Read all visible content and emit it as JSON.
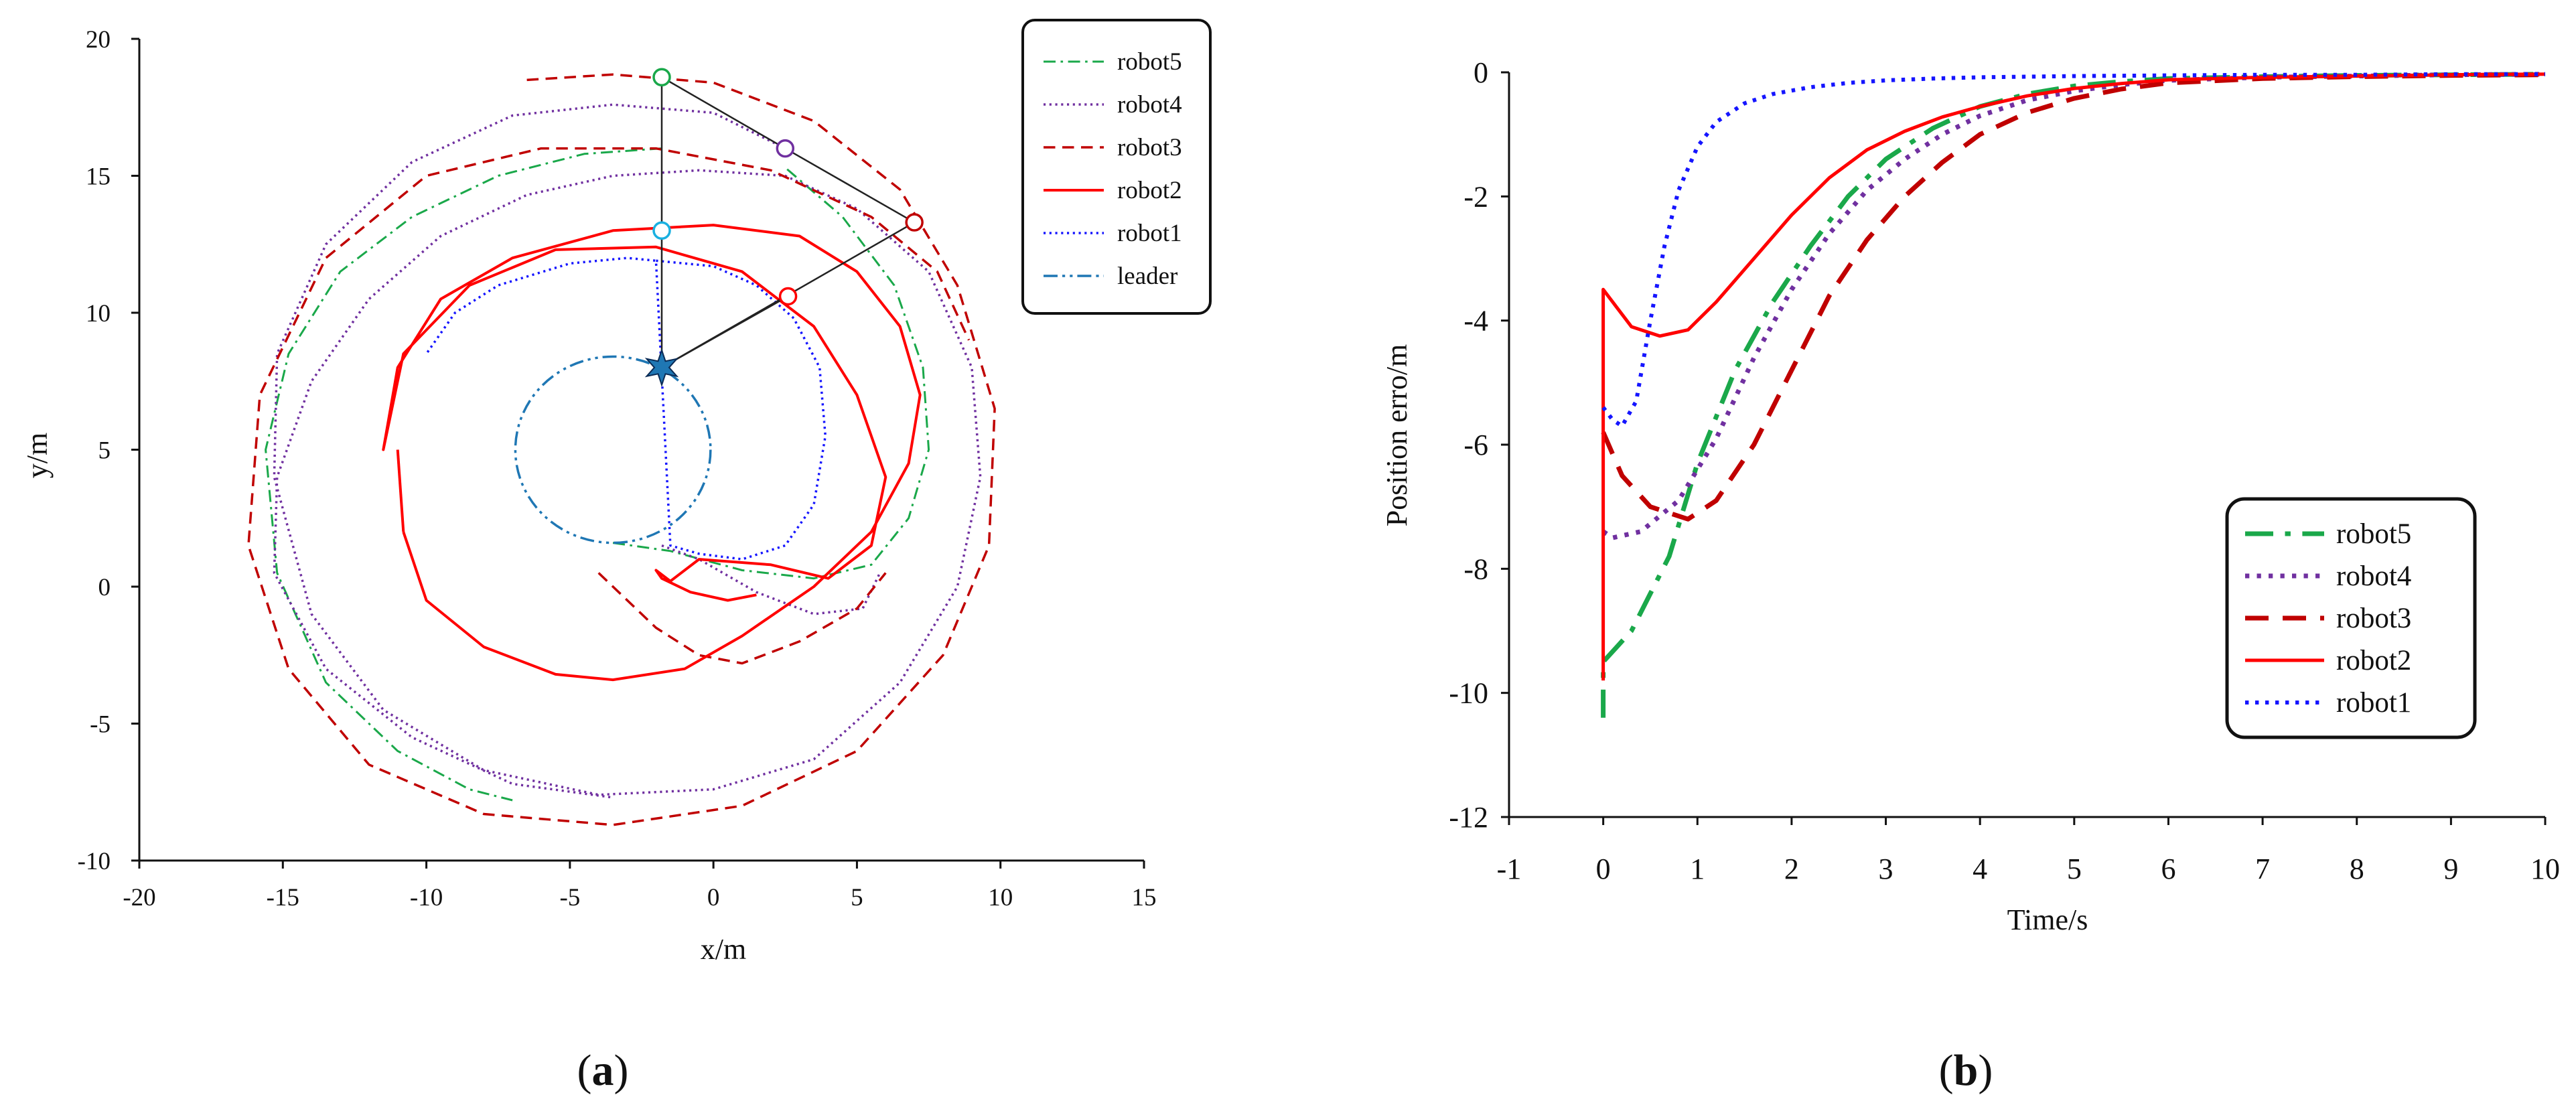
{
  "chart_data": [
    {
      "type": "line",
      "panel_label": "a",
      "title": "",
      "xlabel": "x/m",
      "ylabel": "y/m",
      "xlim": [
        -20,
        15
      ],
      "ylim": [
        -10,
        20
      ],
      "xticks": [
        -20,
        -15,
        -10,
        -5,
        0,
        5,
        10,
        15
      ],
      "yticks": [
        -10,
        -5,
        0,
        5,
        10,
        15,
        20
      ],
      "grid": false,
      "legend_position": "top-right",
      "series": [
        {
          "name": "robot5",
          "color": "#1aa84a",
          "dash": "dashdot",
          "width": 3,
          "x": [
            -1.8,
            -4.5,
            -7.5,
            -10.5,
            -13,
            -14.8,
            -15.6,
            -15.2,
            -13.5,
            -11,
            -8.5,
            -7
          ],
          "y": [
            16.0,
            15.8,
            15.0,
            13.5,
            11.5,
            8.5,
            5.0,
            0.5,
            -3.5,
            -6.0,
            -7.4,
            -7.8
          ]
        },
        {
          "name": "robot5_inner",
          "legend": false,
          "color": "#1aa84a",
          "dash": "dashdot",
          "width": 3,
          "x": [
            -3.5,
            -1.5,
            1.0,
            3.5,
            5.5,
            6.8,
            7.5,
            7.3,
            6.3,
            4.5,
            2.5
          ],
          "y": [
            1.6,
            1.3,
            0.6,
            0.3,
            0.8,
            2.5,
            5.0,
            8.0,
            11.0,
            13.5,
            15.3
          ]
        },
        {
          "name": "robot4",
          "color": "#7030a0",
          "dash": "dotted",
          "width": 3.5,
          "x": [
            2.5,
            0,
            -3.5,
            -7,
            -10.5,
            -13.5,
            -15.2,
            -15.3,
            -14,
            -11.5,
            -8,
            -4,
            0,
            3.5,
            6.5,
            8.5,
            9.3,
            9.0,
            7.5,
            5.0,
            2.5,
            -0.5,
            -3.5,
            -6.5,
            -9.5,
            -12.0,
            -14.0,
            -15.2,
            -15.3,
            -13.5,
            -10.5,
            -7.0,
            -3.5
          ],
          "y": [
            16.0,
            17.3,
            17.6,
            17.2,
            15.5,
            12.5,
            8.5,
            4.0,
            -1.0,
            -4.5,
            -6.7,
            -7.6,
            -7.4,
            -6.3,
            -3.5,
            0.0,
            4.0,
            8.0,
            11.5,
            13.8,
            15.0,
            15.2,
            15.0,
            14.3,
            12.8,
            10.5,
            7.5,
            4.0,
            0.5,
            -3.0,
            -5.5,
            -7.2,
            -7.7
          ]
        },
        {
          "name": "robot4_inner",
          "legend": false,
          "color": "#7030a0",
          "dash": "dotted",
          "width": 3.5,
          "x": [
            -1.8,
            -0.5,
            1.5,
            3.5,
            5.2,
            5.8
          ],
          "y": [
            1.5,
            1.0,
            -0.2,
            -1.0,
            -0.8,
            0.5
          ]
        },
        {
          "name": "robot3",
          "color": "#c00000",
          "dash": "dashed",
          "width": 3.5,
          "x": [
            -6.5,
            -3.5,
            0,
            3.5,
            6.5,
            8.5,
            9.8,
            9.6,
            8.0,
            5.0,
            1.0,
            -3.5,
            -8.0,
            -12.0,
            -14.8,
            -16.2,
            -15.8,
            -13.5,
            -10.0,
            -6.0,
            -2.0,
            2.0,
            5.5,
            7.8,
            8.9
          ],
          "y": [
            18.5,
            18.7,
            18.4,
            17.0,
            14.5,
            11.0,
            6.5,
            1.5,
            -2.5,
            -6.0,
            -8.0,
            -8.7,
            -8.3,
            -6.5,
            -3.0,
            1.5,
            7.0,
            12.0,
            15.0,
            16.0,
            16.0,
            15.2,
            13.5,
            11.5,
            9.0
          ]
        },
        {
          "name": "robot3_inner",
          "legend": false,
          "color": "#c00000",
          "dash": "dashed",
          "width": 3.5,
          "x": [
            -4.0,
            -3.0,
            -2.0,
            -0.5,
            1.0,
            3.0,
            5.0,
            6.0
          ],
          "y": [
            0.5,
            -0.5,
            -1.5,
            -2.5,
            -2.8,
            -2.0,
            -0.8,
            0.5
          ]
        },
        {
          "name": "robot2",
          "color": "#ff0000",
          "dash": "solid",
          "width": 4,
          "x": [
            -10.8,
            -10.0,
            -8.0,
            -5.5,
            -3.5,
            -1.0,
            1.0,
            3.5,
            5.5,
            6.8,
            7.2,
            6.5,
            5.0,
            3.0,
            0.0,
            -3.5,
            -7.0,
            -9.5,
            -11.0,
            -11.5,
            -10.8,
            -8.5,
            -5.5,
            -2.0,
            1.0,
            3.5,
            5.0,
            6.0,
            5.5,
            4.0,
            2.0,
            -0.5,
            -1.5,
            -2.0,
            -1.8,
            -0.8,
            0.5,
            1.5
          ],
          "y": [
            2.0,
            -0.5,
            -2.2,
            -3.2,
            -3.4,
            -3.0,
            -1.8,
            0.0,
            2.0,
            4.5,
            7.0,
            9.5,
            11.5,
            12.8,
            13.2,
            13.0,
            12.0,
            10.5,
            8.0,
            5.0,
            8.5,
            11.0,
            12.3,
            12.4,
            11.5,
            9.5,
            7.0,
            4.0,
            1.5,
            0.3,
            0.8,
            1.0,
            0.2,
            0.6,
            0.3,
            -0.2,
            -0.5,
            -0.3
          ]
        },
        {
          "name": "robot2_stem",
          "legend": false,
          "color": "#ff0000",
          "dash": "solid",
          "width": 4,
          "x": [
            -11.0,
            -10.8
          ],
          "y": [
            5.0,
            2.0
          ]
        },
        {
          "name": "robot1",
          "color": "#1515ff",
          "dash": "dotted",
          "width": 3.5,
          "x": [
            -2.0,
            0.0,
            1.5,
            2.8,
            3.7,
            3.9,
            3.5,
            2.5,
            1.0,
            -0.5,
            -1.5,
            -2.0,
            -3.0,
            -5.0,
            -7.5,
            -9.0,
            -10.0
          ],
          "y": [
            11.9,
            11.7,
            11.0,
            9.8,
            8.0,
            5.5,
            3.0,
            1.5,
            1.0,
            1.2,
            1.5,
            11.9,
            12.0,
            11.8,
            11.0,
            10.0,
            8.5
          ]
        },
        {
          "name": "leader",
          "color": "#1f77b4",
          "dash": "dashdotdot",
          "width": 3.5,
          "circle": {
            "cx": -3.5,
            "cy": 5.0,
            "r": 3.4
          }
        }
      ],
      "formation_links": [
        {
          "from": [
            -1.8,
            18.6
          ],
          "to": [
            2.5,
            16.0
          ]
        },
        {
          "from": [
            2.5,
            16.0
          ],
          "to": [
            7.0,
            13.3
          ]
        },
        {
          "from": [
            7.0,
            13.3
          ],
          "to": [
            -1.8,
            8.0
          ]
        },
        {
          "from": [
            -1.8,
            18.6
          ],
          "to": [
            -1.8,
            8.0
          ]
        },
        {
          "from": [
            2.6,
            10.6
          ],
          "to": [
            -1.8,
            8.0
          ]
        }
      ],
      "markers": [
        {
          "robot": "robot5",
          "x": -1.8,
          "y": 18.6,
          "color": "#1aa84a",
          "shape": "circle"
        },
        {
          "robot": "robot4",
          "x": 2.5,
          "y": 16.0,
          "color": "#7030a0",
          "shape": "circle"
        },
        {
          "robot": "robot3",
          "x": 7.0,
          "y": 13.3,
          "color": "#c00000",
          "shape": "circle"
        },
        {
          "robot": "robot2",
          "x": 2.6,
          "y": 10.6,
          "color": "#ff0000",
          "shape": "circle"
        },
        {
          "robot": "robot1",
          "x": -1.8,
          "y": 13.0,
          "color": "#1ab0e0",
          "shape": "circle"
        },
        {
          "robot": "leader",
          "x": -1.8,
          "y": 8.0,
          "color": "#1f77b4",
          "shape": "star"
        }
      ]
    },
    {
      "type": "line",
      "panel_label": "b",
      "title": "",
      "xlabel": "Time/s",
      "ylabel": "Position erro/m",
      "xlim": [
        -1,
        10
      ],
      "ylim": [
        -12,
        0
      ],
      "xticks": [
        -1,
        0,
        1,
        2,
        3,
        4,
        5,
        6,
        7,
        8,
        9,
        10
      ],
      "yticks": [
        -12,
        -10,
        -8,
        -6,
        -4,
        -2,
        0
      ],
      "grid": false,
      "legend_position": "bottom-right",
      "series": [
        {
          "name": "robot5",
          "color": "#1aa84a",
          "dash": "dashdot",
          "width": 7,
          "x": [
            0,
            0,
            0.3,
            0.7,
            1.0,
            1.4,
            1.8,
            2.2,
            2.6,
            3.0,
            3.5,
            4.0,
            4.5,
            5.0,
            5.5,
            6.0,
            7.0,
            8.0,
            9.0,
            10.0
          ],
          "y": [
            -10.4,
            -9.5,
            -9.0,
            -7.8,
            -6.3,
            -4.8,
            -3.7,
            -2.8,
            -2.0,
            -1.4,
            -0.9,
            -0.55,
            -0.35,
            -0.22,
            -0.15,
            -0.1,
            -0.07,
            -0.05,
            -0.04,
            -0.03
          ]
        },
        {
          "name": "robot4",
          "color": "#7030a0",
          "dash": "dotted",
          "width": 7,
          "x": [
            0,
            0.1,
            0.4,
            0.8,
            1.2,
            1.6,
            2.0,
            2.4,
            2.8,
            3.2,
            3.6,
            4.0,
            4.5,
            5.0,
            5.5,
            6.0,
            7.0,
            8.0,
            9.0,
            10.0
          ],
          "y": [
            -7.4,
            -7.5,
            -7.4,
            -6.9,
            -5.9,
            -4.6,
            -3.5,
            -2.6,
            -1.9,
            -1.4,
            -1.0,
            -0.7,
            -0.45,
            -0.3,
            -0.2,
            -0.13,
            -0.08,
            -0.06,
            -0.04,
            -0.03
          ]
        },
        {
          "name": "robot3",
          "color": "#c00000",
          "dash": "dashed",
          "width": 7,
          "x": [
            0,
            0.2,
            0.5,
            0.9,
            1.2,
            1.6,
            2.0,
            2.4,
            2.8,
            3.2,
            3.6,
            4.0,
            4.5,
            5.0,
            5.5,
            6.0,
            7.0,
            8.0,
            9.0,
            10.0
          ],
          "y": [
            -5.8,
            -6.5,
            -7.0,
            -7.2,
            -6.9,
            -6.0,
            -4.8,
            -3.6,
            -2.7,
            -2.0,
            -1.45,
            -1.0,
            -0.65,
            -0.42,
            -0.27,
            -0.17,
            -0.1,
            -0.07,
            -0.05,
            -0.04
          ]
        },
        {
          "name": "robot2",
          "color": "#ff0000",
          "dash": "solid",
          "width": 5,
          "x": [
            0,
            0,
            0.1,
            0.3,
            0.6,
            0.9,
            1.2,
            1.6,
            2.0,
            2.4,
            2.8,
            3.2,
            3.6,
            4.0,
            4.5,
            5.0,
            5.5,
            6.0,
            7.0,
            8.0,
            9.0,
            10.0
          ],
          "y": [
            -9.8,
            -3.5,
            -3.7,
            -4.1,
            -4.25,
            -4.15,
            -3.7,
            -3.0,
            -2.3,
            -1.7,
            -1.25,
            -0.95,
            -0.72,
            -0.55,
            -0.38,
            -0.26,
            -0.18,
            -0.12,
            -0.08,
            -0.06,
            -0.04,
            -0.03
          ]
        },
        {
          "name": "robot1",
          "color": "#1515ff",
          "dash": "dotted",
          "width": 6,
          "x": [
            0,
            0.1,
            0.2,
            0.35,
            0.5,
            0.65,
            0.8,
            1.0,
            1.2,
            1.5,
            1.8,
            2.2,
            2.6,
            3.0,
            3.5,
            4.0,
            4.5,
            5.0,
            6.0,
            7.0,
            8.0,
            9.0,
            10.0
          ],
          "y": [
            -5.4,
            -5.6,
            -5.7,
            -5.3,
            -4.0,
            -2.8,
            -1.9,
            -1.2,
            -0.8,
            -0.5,
            -0.35,
            -0.24,
            -0.17,
            -0.13,
            -0.1,
            -0.08,
            -0.07,
            -0.06,
            -0.05,
            -0.04,
            -0.04,
            -0.03,
            -0.03
          ]
        }
      ]
    }
  ]
}
